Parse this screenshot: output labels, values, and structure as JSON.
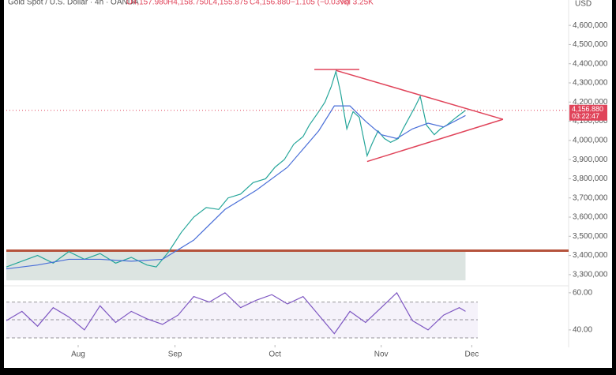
{
  "header": {
    "symbol": "Gold Spot / U.S. Dollar · 4h · OANDA",
    "open": "O4,157.980",
    "high": "H4,158.750",
    "low": "L4,155.875",
    "close": "C4,156.880",
    "change": "−1.105 (−0.03%)",
    "volume": "Vol 3.25K",
    "currency": "USD"
  },
  "chart_data": [
    {
      "type": "line",
      "xlim": [
        0,
        180
      ],
      "xticks": [
        {
          "value": 23,
          "label": "Aug"
        },
        {
          "value": 54,
          "label": "Sep"
        },
        {
          "value": 86,
          "label": "Oct"
        },
        {
          "value": 120,
          "label": "Nov"
        },
        {
          "value": 149,
          "label": "Dec"
        }
      ],
      "ylim": [
        3250000,
        4650000
      ],
      "yticks": [
        {
          "value": 4600000,
          "label": "4,600,000"
        },
        {
          "value": 4500000,
          "label": "4,500,000"
        },
        {
          "value": 4400000,
          "label": "4,400,000"
        },
        {
          "value": 4300000,
          "label": "4,300,000"
        },
        {
          "value": 4200000,
          "label": "4,200,000"
        },
        {
          "value": 4100000,
          "label": "4,100,000"
        },
        {
          "value": 4000000,
          "label": "4,000,000"
        },
        {
          "value": 3900000,
          "label": "3,900,000"
        },
        {
          "value": 3800000,
          "label": "3,800,000"
        },
        {
          "value": 3700000,
          "label": "3,700,000"
        },
        {
          "value": 3600000,
          "label": "3,600,000"
        },
        {
          "value": 3500000,
          "label": "3,500,000"
        },
        {
          "value": 3400000,
          "label": "3,400,000"
        },
        {
          "value": 3300000,
          "label": "3,300,000"
        }
      ],
      "series": [
        {
          "color": "#26a69a",
          "x": [
            0,
            5,
            10,
            15,
            20,
            25,
            30,
            35,
            40,
            45,
            48,
            52,
            56,
            60,
            64,
            68,
            71,
            75,
            79,
            83,
            86,
            89,
            92,
            95,
            97,
            100,
            102,
            104,
            105.5,
            107,
            109,
            111,
            113,
            115.5,
            117,
            119,
            121,
            123,
            125.5,
            127,
            129,
            131,
            132.5,
            134.5,
            137,
            139,
            141,
            144,
            147
          ],
          "values": [
            3340000,
            3370000,
            3400000,
            3360000,
            3420000,
            3380000,
            3410000,
            3360000,
            3390000,
            3350000,
            3340000,
            3420000,
            3520000,
            3600000,
            3650000,
            3640000,
            3700000,
            3720000,
            3780000,
            3800000,
            3860000,
            3900000,
            3980000,
            4020000,
            4080000,
            4150000,
            4200000,
            4280000,
            4360000,
            4250000,
            4060000,
            4150000,
            4120000,
            3920000,
            3980000,
            4050000,
            4010000,
            3990000,
            4010000,
            4060000,
            4120000,
            4180000,
            4230000,
            4080000,
            4030000,
            4060000,
            4080000,
            4120000,
            4156880
          ]
        },
        {
          "color": "#4a6fd8",
          "x": [
            0,
            10,
            20,
            30,
            40,
            50,
            60,
            70,
            80,
            90,
            100,
            105,
            110,
            115,
            120,
            125,
            130,
            135,
            140,
            147
          ],
          "values": [
            3330000,
            3350000,
            3380000,
            3380000,
            3370000,
            3380000,
            3480000,
            3640000,
            3740000,
            3860000,
            4050000,
            4180000,
            4180000,
            4100000,
            4030000,
            4010000,
            4060000,
            4090000,
            4070000,
            4130000
          ]
        }
      ],
      "zone": {
        "x": [
          0,
          147
        ],
        "y": [
          3270000,
          3425000
        ],
        "color": "#d3ddd9"
      },
      "drawings": [
        {
          "x": [
            0,
            180
          ],
          "y": [
            3425000,
            3425000
          ],
          "color": "#b5533c"
        },
        {
          "x": [
            98.6,
            113
          ],
          "y": [
            4370000,
            4370000
          ],
          "color": "#e0445a"
        },
        {
          "x": [
            105.5,
            159
          ],
          "y": [
            4365000,
            4110000
          ],
          "color": "#e0445a"
        },
        {
          "x": [
            115.5,
            159
          ],
          "y": [
            3890000,
            4110000
          ],
          "color": "#e0445a"
        }
      ],
      "price_label": "4,156.880",
      "countdown": "03:22:47",
      "price_color": "#e0445a"
    },
    {
      "type": "line",
      "xlim": [
        0,
        180
      ],
      "ylim": [
        34,
        62.5
      ],
      "yticks": [
        {
          "value": 60,
          "label": "60.00"
        },
        {
          "value": 40,
          "label": "40.00"
        }
      ],
      "levels": [
        55,
        45.5,
        35.7
      ],
      "series": [
        {
          "color": "#7e57c2",
          "x": [
            0,
            5,
            10,
            15,
            20,
            25,
            30,
            35,
            40,
            45,
            50,
            55,
            60,
            65,
            70,
            75,
            80,
            85,
            90,
            95,
            100,
            105,
            110,
            115,
            120,
            125,
            130,
            135,
            140,
            145,
            147
          ],
          "values": [
            45,
            50,
            42,
            52,
            47,
            40,
            53,
            44,
            50,
            46,
            43,
            48,
            58,
            55,
            60,
            52,
            56,
            59,
            54,
            58,
            48,
            38,
            50,
            44,
            52,
            60,
            45,
            40,
            48,
            52,
            50
          ]
        }
      ]
    }
  ]
}
